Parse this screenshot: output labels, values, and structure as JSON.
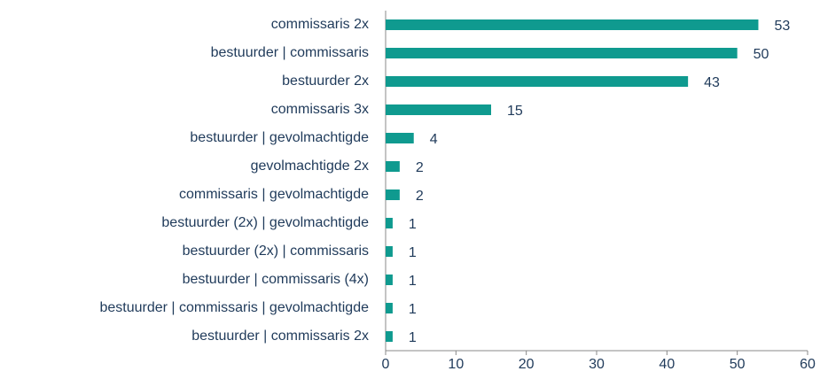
{
  "chart_data": {
    "type": "bar",
    "orientation": "horizontal",
    "categories": [
      "commissaris 2x",
      "bestuurder | commissaris",
      "bestuurder 2x",
      "commissaris 3x",
      "bestuurder | gevolmachtigde",
      "gevolmachtigde 2x",
      "commissaris | gevolmachtigde",
      "bestuurder (2x) | gevolmachtigde",
      "bestuurder (2x) | commissaris",
      "bestuurder | commissaris (4x)",
      "bestuurder | commissaris | gevolmachtigde",
      "bestuurder | commissaris 2x"
    ],
    "values": [
      53,
      50,
      43,
      15,
      4,
      2,
      2,
      1,
      1,
      1,
      1,
      1
    ],
    "color": "#0f9a8f",
    "xlim": [
      0,
      60
    ],
    "xticks": [
      0,
      10,
      20,
      30,
      40,
      50,
      60
    ],
    "grid": false
  }
}
